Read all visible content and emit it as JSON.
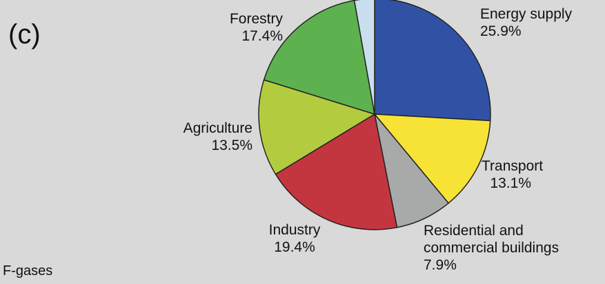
{
  "panel_label": "(c)",
  "footer_label": "F-gases",
  "chart_data": {
    "type": "pie",
    "start_angle_deg": 0,
    "direction": "clockwise",
    "slices": [
      {
        "name": "Energy supply",
        "value": 25.9,
        "value_label": "25.9%",
        "color": "#3152a4"
      },
      {
        "name": "Transport",
        "value": 13.1,
        "value_label": "13.1%",
        "color": "#f7e336"
      },
      {
        "name": "Residential and commercial buildings",
        "value": 7.9,
        "value_label": "7.9%",
        "color": "#a8aaa9"
      },
      {
        "name": "Industry",
        "value": 19.4,
        "value_label": "19.4%",
        "color": "#c4363f"
      },
      {
        "name": "Agriculture",
        "value": 13.5,
        "value_label": "13.5%",
        "color": "#b3cc3f"
      },
      {
        "name": "Forestry",
        "value": 17.4,
        "value_label": "17.4%",
        "color": "#5db24f"
      },
      {
        "name": "",
        "value": 2.8,
        "value_label": "",
        "color": "#c9dfee"
      }
    ]
  }
}
